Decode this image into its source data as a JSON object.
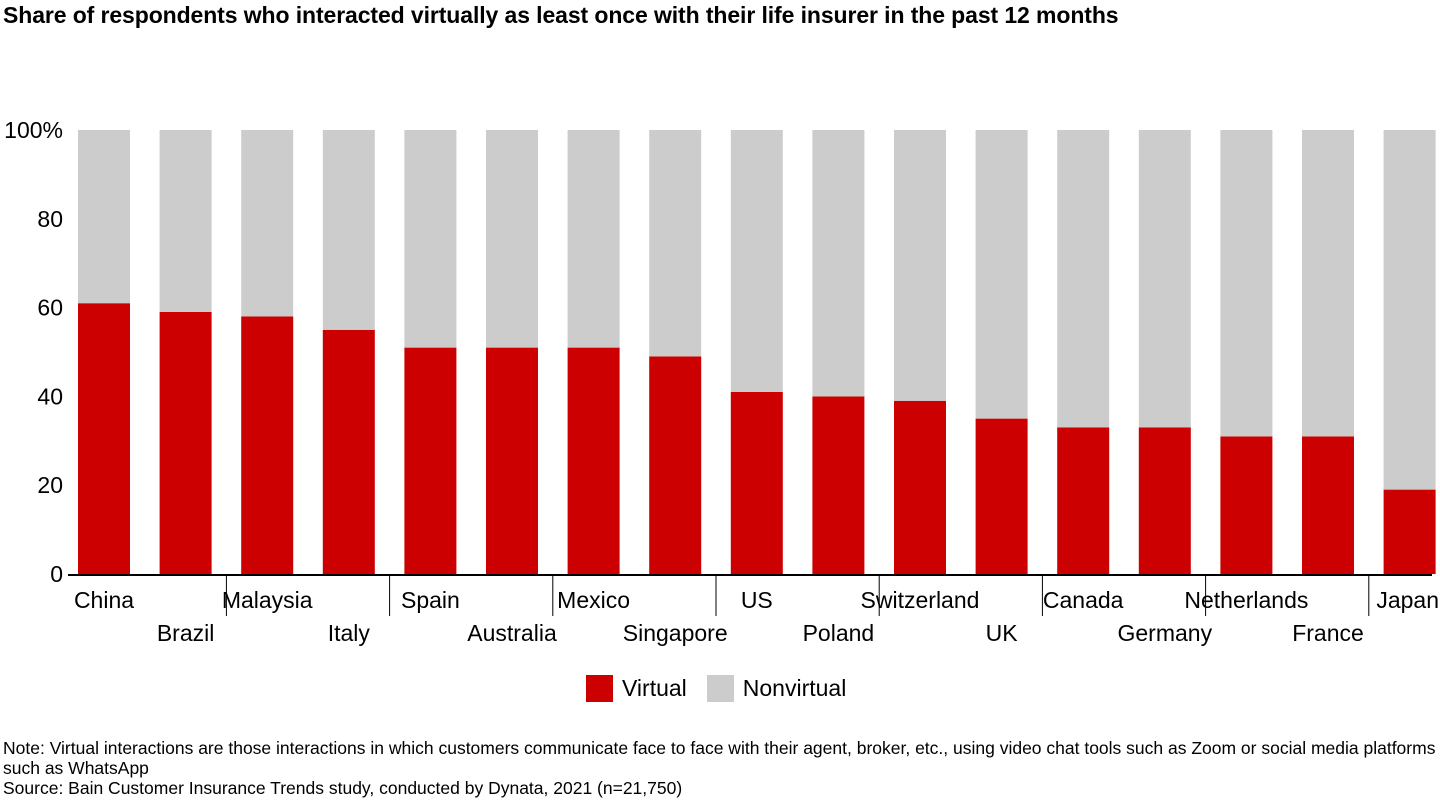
{
  "chart_data": {
    "type": "bar",
    "stacked": true,
    "title": "Share of respondents who interacted virtually as least once with their life insurer in the past 12 months",
    "categories": [
      "China",
      "Brazil",
      "Malaysia",
      "Italy",
      "Spain",
      "Australia",
      "Mexico",
      "Singapore",
      "US",
      "Poland",
      "Switzerland",
      "UK",
      "Canada",
      "Germany",
      "Netherlands",
      "France",
      "Japan"
    ],
    "series": [
      {
        "name": "Virtual",
        "color": "#cc0000",
        "values": [
          61,
          59,
          58,
          55,
          51,
          51,
          51,
          49,
          41,
          40,
          39,
          35,
          33,
          33,
          31,
          31,
          19
        ]
      },
      {
        "name": "Nonvirtual",
        "color": "#cccccc",
        "values": [
          39,
          41,
          42,
          45,
          49,
          49,
          49,
          51,
          59,
          60,
          61,
          65,
          67,
          67,
          69,
          69,
          81
        ]
      }
    ],
    "y_ticks": [
      "0",
      "20",
      "40",
      "60",
      "80",
      "100%"
    ],
    "ylim": [
      0,
      100
    ],
    "grid": false,
    "legend_position": "bottom-center"
  },
  "notes": {
    "note": "Note: Virtual interactions are those interactions in which customers communicate face to face with their agent, broker, etc., using video chat tools such as Zoom or social media platforms such as WhatsApp",
    "source": "Source: Bain Customer Insurance Trends study, conducted by Dynata, 2021 (n=21,750)"
  }
}
